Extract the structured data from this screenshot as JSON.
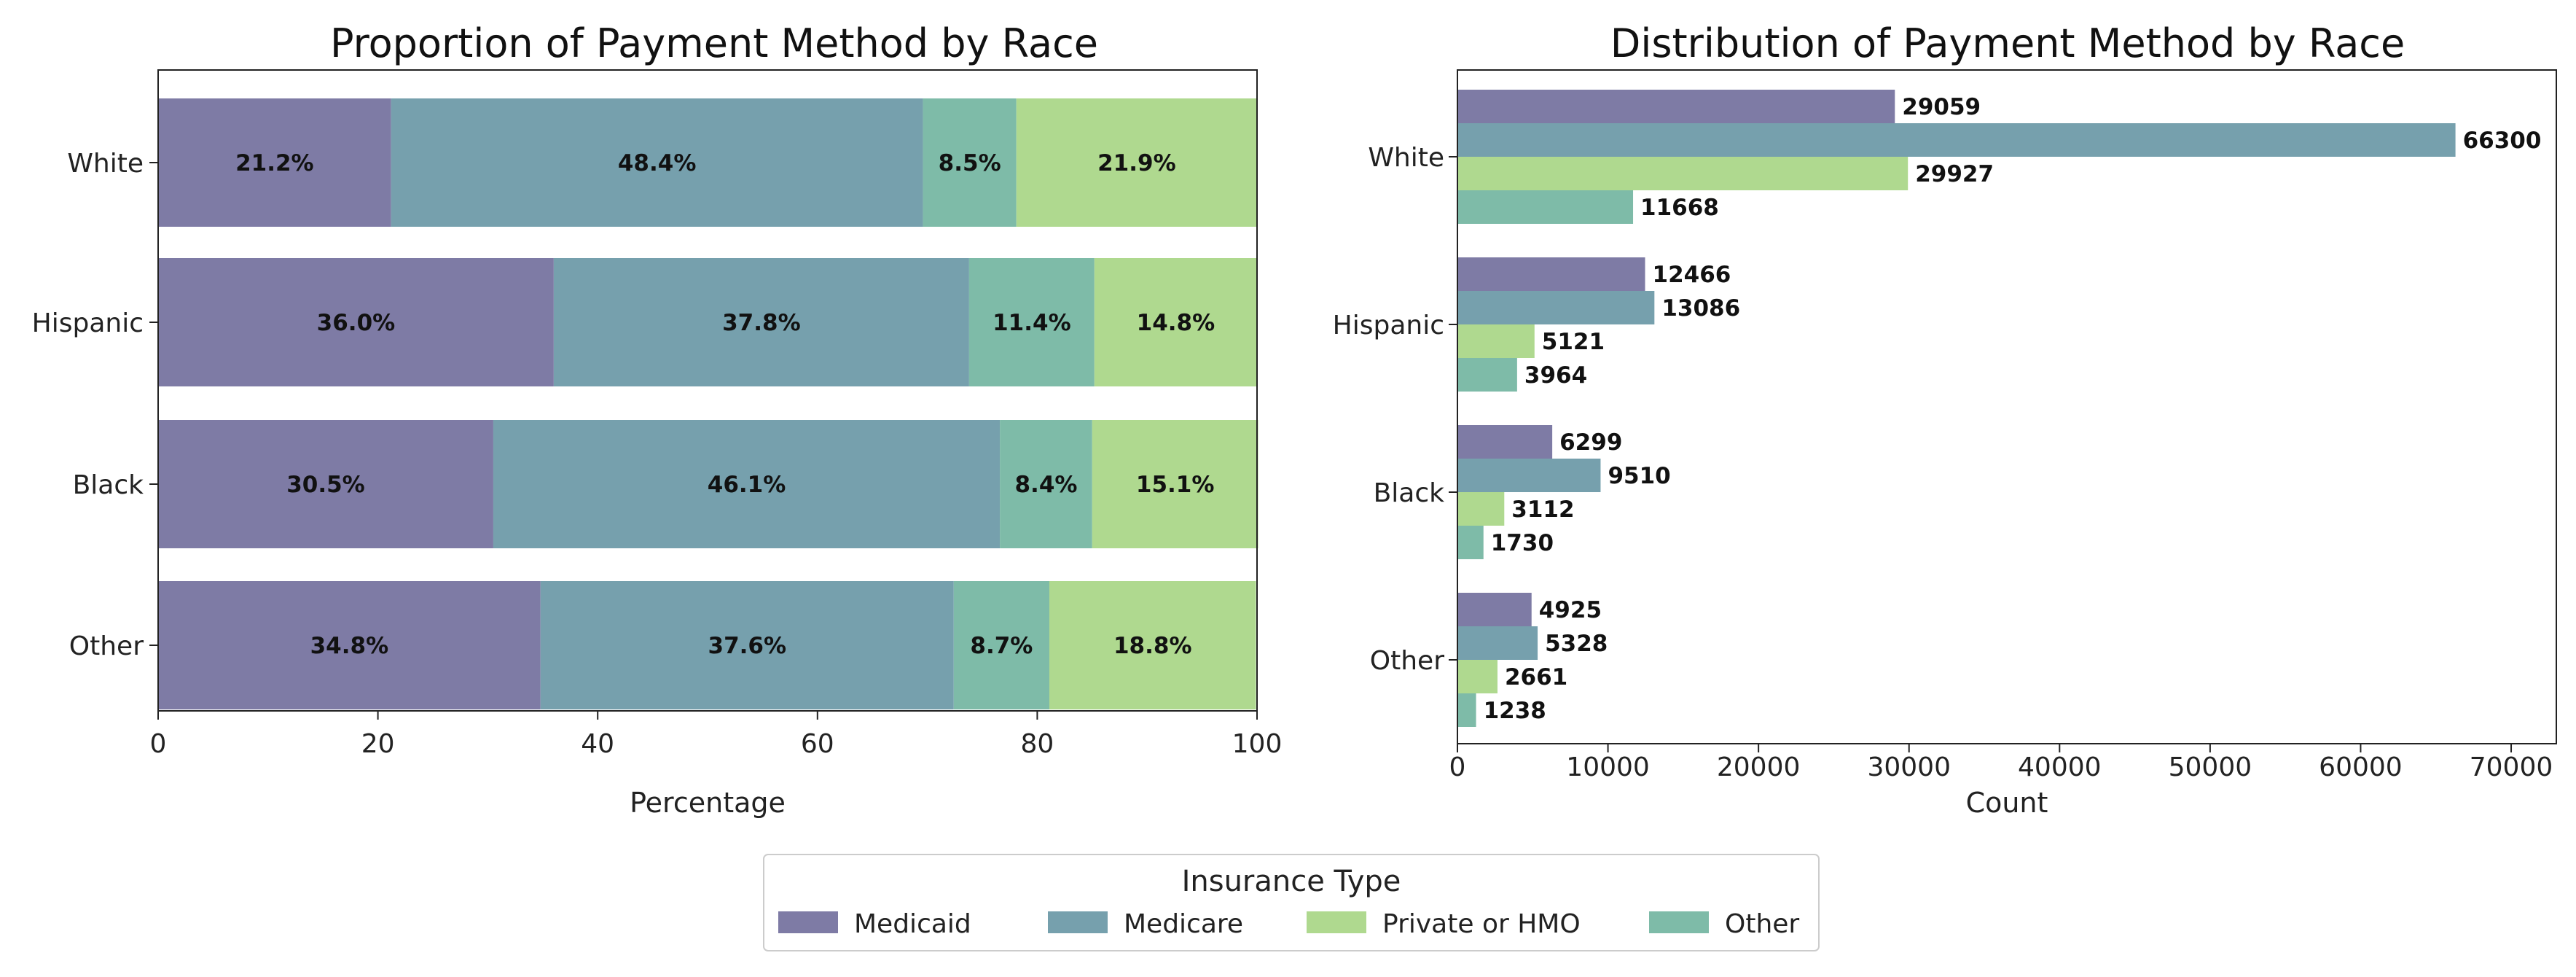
{
  "chart_data": [
    {
      "type": "bar",
      "orientation": "horizontal",
      "stacked": true,
      "title": "Proportion of Payment Method by Race",
      "xlabel": "Percentage",
      "ylabel": "",
      "xlim": [
        0,
        100
      ],
      "xticks": [
        "0",
        "20",
        "40",
        "60",
        "80",
        "100"
      ],
      "categories": [
        "White",
        "Hispanic",
        "Black",
        "Other"
      ],
      "series": [
        {
          "name": "Medicaid",
          "values": [
            21.2,
            36.0,
            30.5,
            34.8
          ],
          "labels": [
            "21.2%",
            "36.0%",
            "30.5%",
            "34.8%"
          ]
        },
        {
          "name": "Medicare",
          "values": [
            48.4,
            37.8,
            46.1,
            37.6
          ],
          "labels": [
            "48.4%",
            "37.8%",
            "46.1%",
            "37.6%"
          ]
        },
        {
          "name": "Other",
          "values": [
            8.5,
            11.4,
            8.4,
            8.7
          ],
          "labels": [
            "8.5%",
            "11.4%",
            "8.4%",
            "8.7%"
          ]
        },
        {
          "name": "Private or HMO",
          "values": [
            21.9,
            14.8,
            15.1,
            18.8
          ],
          "labels": [
            "21.9%",
            "14.8%",
            "15.1%",
            "18.8%"
          ]
        }
      ]
    },
    {
      "type": "bar",
      "orientation": "horizontal",
      "grouped": true,
      "title": "Distribution of Payment Method by Race",
      "xlabel": "Count",
      "ylabel": "",
      "xlim": [
        0,
        73000
      ],
      "xticks": [
        "0",
        "10000",
        "20000",
        "30000",
        "40000",
        "50000",
        "60000",
        "70000"
      ],
      "categories": [
        "White",
        "Hispanic",
        "Black",
        "Other"
      ],
      "series": [
        {
          "name": "Medicaid",
          "values": [
            29059,
            12466,
            6299,
            4925
          ],
          "labels": [
            "29059",
            "12466",
            "6299",
            "4925"
          ]
        },
        {
          "name": "Medicare",
          "values": [
            66300,
            13086,
            9510,
            5328
          ],
          "labels": [
            "66300",
            "13086",
            "9510",
            "5328"
          ]
        },
        {
          "name": "Private or HMO",
          "values": [
            29927,
            5121,
            3112,
            2661
          ],
          "labels": [
            "29927",
            "5121",
            "3112",
            "2661"
          ]
        },
        {
          "name": "Other",
          "values": [
            11668,
            3964,
            1730,
            1238
          ],
          "labels": [
            "11668",
            "3964",
            "1730",
            "1238"
          ]
        }
      ]
    }
  ],
  "legend": {
    "title": "Insurance Type",
    "placement": "bottom-center",
    "entries": [
      "Medicaid",
      "Medicare",
      "Private or HMO",
      "Other"
    ]
  },
  "colors": {
    "Medicaid": "#7e7ba5",
    "Medicare": "#76a0ad",
    "Private or HMO": "#afd98f",
    "Other": "#7ebba8"
  }
}
